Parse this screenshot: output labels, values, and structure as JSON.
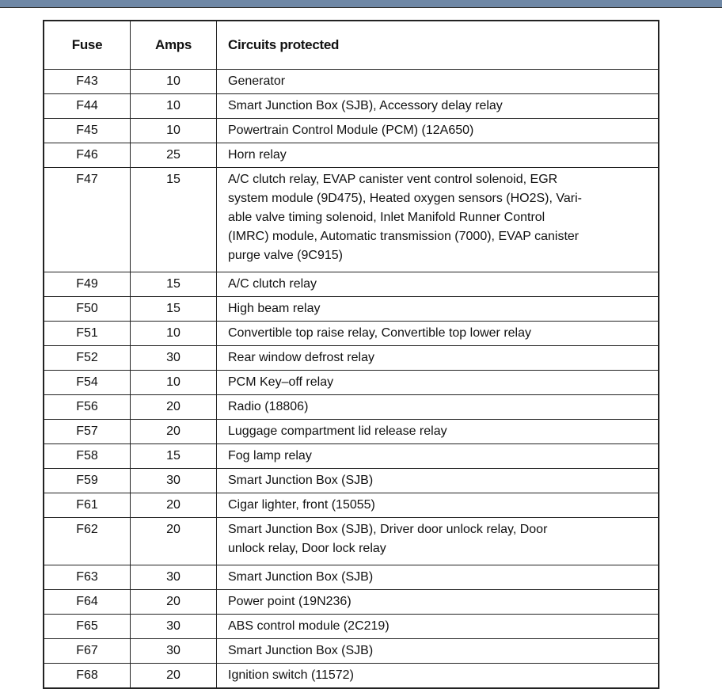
{
  "window": {
    "accent_color": "#6f88a6"
  },
  "table": {
    "headers": [
      "Fuse",
      "Amps",
      "Circuits protected"
    ],
    "rows": [
      {
        "fuse": "F43",
        "amps": "10",
        "lines": [
          "Generator"
        ]
      },
      {
        "fuse": "F44",
        "amps": "10",
        "lines": [
          "Smart Junction Box (SJB), Accessory delay relay"
        ]
      },
      {
        "fuse": "F45",
        "amps": "10",
        "lines": [
          "Powertrain Control Module (PCM) (12A650)"
        ]
      },
      {
        "fuse": "F46",
        "amps": "25",
        "lines": [
          "Horn relay"
        ]
      },
      {
        "fuse": "F47",
        "amps": "15",
        "lines": [
          "A/C clutch relay, EVAP canister vent control solenoid, EGR",
          "system module (9D475), Heated oxygen sensors (HO2S), Vari-",
          "able valve timing solenoid, Inlet Manifold Runner Control",
          "(IMRC) module, Automatic transmission (7000), EVAP canister",
          "purge valve (9C915)"
        ]
      },
      {
        "fuse": "F49",
        "amps": "15",
        "lines": [
          "A/C clutch relay"
        ]
      },
      {
        "fuse": "F50",
        "amps": "15",
        "lines": [
          "High beam relay"
        ]
      },
      {
        "fuse": "F51",
        "amps": "10",
        "lines": [
          "Convertible top raise relay, Convertible top lower relay"
        ]
      },
      {
        "fuse": "F52",
        "amps": "30",
        "lines": [
          "Rear window defrost relay"
        ]
      },
      {
        "fuse": "F54",
        "amps": "10",
        "lines": [
          "PCM Key–off relay"
        ]
      },
      {
        "fuse": "F56",
        "amps": "20",
        "lines": [
          "Radio (18806)"
        ]
      },
      {
        "fuse": "F57",
        "amps": "20",
        "lines": [
          "Luggage compartment lid release relay"
        ]
      },
      {
        "fuse": "F58",
        "amps": "15",
        "lines": [
          "Fog lamp relay"
        ]
      },
      {
        "fuse": "F59",
        "amps": "30",
        "lines": [
          "Smart Junction Box (SJB)"
        ]
      },
      {
        "fuse": "F61",
        "amps": "20",
        "lines": [
          "Cigar lighter, front (15055)"
        ]
      },
      {
        "fuse": "F62",
        "amps": "20",
        "lines": [
          "Smart Junction Box (SJB), Driver door unlock relay, Door",
          "unlock relay, Door lock relay"
        ]
      },
      {
        "fuse": "F63",
        "amps": "30",
        "lines": [
          "Smart Junction Box (SJB)"
        ]
      },
      {
        "fuse": "F64",
        "amps": "20",
        "lines": [
          "Power point (19N236)"
        ]
      },
      {
        "fuse": "F65",
        "amps": "30",
        "lines": [
          "ABS control module (2C219)"
        ]
      },
      {
        "fuse": "F67",
        "amps": "30",
        "lines": [
          "Smart Junction Box (SJB)"
        ]
      },
      {
        "fuse": "F68",
        "amps": "20",
        "lines": [
          "Ignition switch (11572)"
        ]
      }
    ]
  }
}
